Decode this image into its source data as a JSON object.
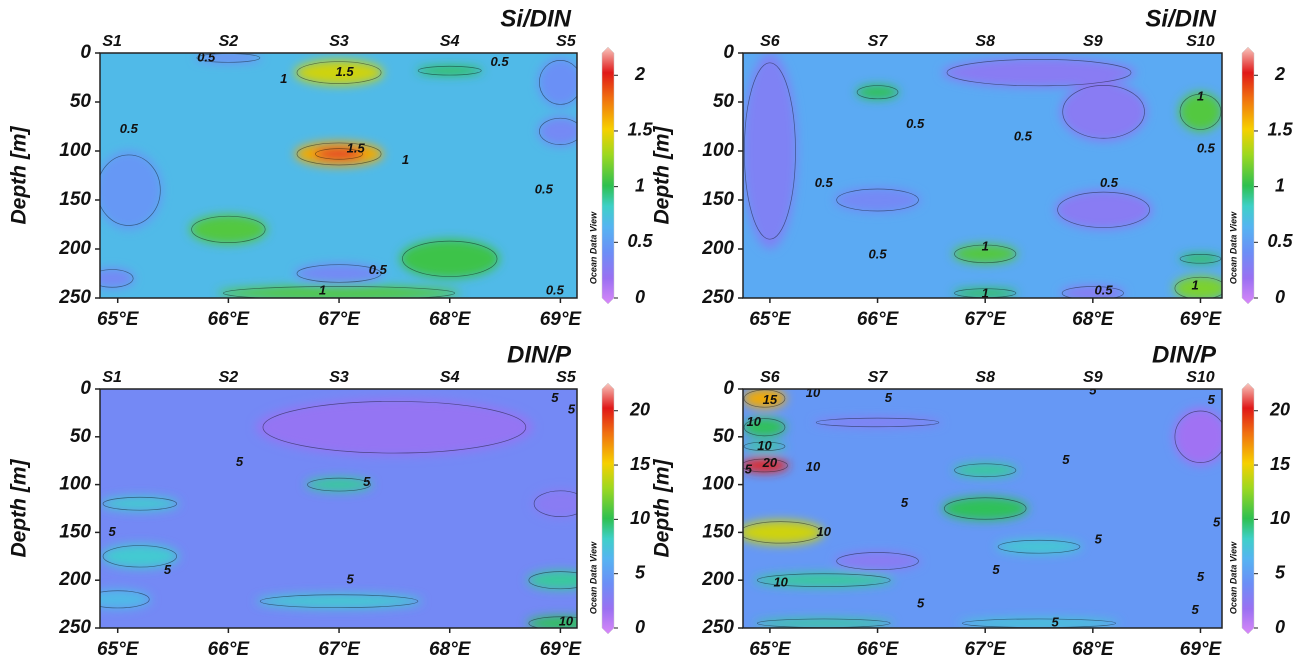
{
  "chart_data": [
    {
      "type": "contour",
      "title": "Si/DIN",
      "y_label": "Depth [m]",
      "colorbar_label": "Ocean Data View",
      "stations": [
        {
          "name": "S1",
          "lon": 64.95
        },
        {
          "name": "S2",
          "lon": 66.0
        },
        {
          "name": "S3",
          "lon": 67.0
        },
        {
          "name": "S4",
          "lon": 68.0
        },
        {
          "name": "S5",
          "lon": 69.05
        }
      ],
      "xlim": [
        64.84,
        69.15
      ],
      "xticks": [
        {
          "value": 65,
          "label": "65°E"
        },
        {
          "value": 66,
          "label": "66°E"
        },
        {
          "value": 67,
          "label": "67°E"
        },
        {
          "value": 68,
          "label": "68°E"
        },
        {
          "value": 69,
          "label": "69°E"
        }
      ],
      "ylim": [
        250,
        0
      ],
      "yticks": [
        0,
        50,
        100,
        150,
        200,
        250
      ],
      "zlim": [
        0,
        2.2
      ],
      "zticks": [
        0,
        0.5,
        1,
        1.5,
        2
      ],
      "background": 0.7,
      "features": [
        {
          "lon": 67.0,
          "depth": 20,
          "lon_width": 0.8,
          "depth_height": 25,
          "value": 1.4
        },
        {
          "lon": 67.0,
          "depth": 103,
          "lon_width": 0.8,
          "depth_height": 25,
          "value": 1.6
        },
        {
          "lon": 67.0,
          "depth": 103,
          "lon_width": 0.45,
          "depth_height": 12,
          "value": 2.0
        },
        {
          "lon": 66.0,
          "depth": 180,
          "lon_width": 0.7,
          "depth_height": 30,
          "value": 1.1
        },
        {
          "lon": 68.0,
          "depth": 210,
          "lon_width": 0.9,
          "depth_height": 40,
          "value": 1.05
        },
        {
          "lon": 67.0,
          "depth": 245,
          "lon_width": 2.2,
          "depth_height": 15,
          "value": 1.1
        },
        {
          "lon": 67.0,
          "depth": 225,
          "lon_width": 0.8,
          "depth_height": 20,
          "value": 0.4
        },
        {
          "lon": 65.1,
          "depth": 140,
          "lon_width": 0.6,
          "depth_height": 80,
          "value": 0.5
        },
        {
          "lon": 69.0,
          "depth": 30,
          "lon_width": 0.4,
          "depth_height": 50,
          "value": 0.45
        },
        {
          "lon": 69.0,
          "depth": 80,
          "lon_width": 0.4,
          "depth_height": 30,
          "value": 0.4
        },
        {
          "lon": 68.0,
          "depth": 18,
          "lon_width": 0.6,
          "depth_height": 10,
          "value": 1.0
        },
        {
          "lon": 66.0,
          "depth": 5,
          "lon_width": 0.6,
          "depth_height": 10,
          "value": 0.4
        },
        {
          "lon": 64.95,
          "depth": 230,
          "lon_width": 0.4,
          "depth_height": 20,
          "value": 0.4
        }
      ],
      "contour_labels": [
        {
          "lon": 65.1,
          "depth": 78,
          "value": 0.5
        },
        {
          "lon": 65.8,
          "depth": 5,
          "value": 0.5
        },
        {
          "lon": 67.05,
          "depth": 20,
          "value": 1.5
        },
        {
          "lon": 66.5,
          "depth": 27,
          "value": 1
        },
        {
          "lon": 68.45,
          "depth": 10,
          "value": 0.5
        },
        {
          "lon": 67.15,
          "depth": 98,
          "value": 1.5
        },
        {
          "lon": 67.6,
          "depth": 110,
          "value": 1
        },
        {
          "lon": 67.35,
          "depth": 222,
          "value": 0.5
        },
        {
          "lon": 66.85,
          "depth": 243,
          "value": 1
        },
        {
          "lon": 68.85,
          "depth": 140,
          "value": 0.5
        },
        {
          "lon": 68.95,
          "depth": 243,
          "value": 0.5
        }
      ]
    },
    {
      "type": "contour",
      "title": "Si/DIN",
      "y_label": "Depth [m]",
      "colorbar_label": "Ocean Data View",
      "stations": [
        {
          "name": "S6",
          "lon": 65.0
        },
        {
          "name": "S7",
          "lon": 66.0
        },
        {
          "name": "S8",
          "lon": 67.0
        },
        {
          "name": "S9",
          "lon": 68.0
        },
        {
          "name": "S10",
          "lon": 69.0
        }
      ],
      "xlim": [
        64.75,
        69.2
      ],
      "xticks": [
        {
          "value": 65,
          "label": "65°E"
        },
        {
          "value": 66,
          "label": "66°E"
        },
        {
          "value": 67,
          "label": "67°E"
        },
        {
          "value": 68,
          "label": "68°E"
        },
        {
          "value": 69,
          "label": "69°E"
        }
      ],
      "ylim": [
        250,
        0
      ],
      "yticks": [
        0,
        50,
        100,
        150,
        200,
        250
      ],
      "zlim": [
        0,
        2.2
      ],
      "zticks": [
        0,
        0.5,
        1,
        1.5,
        2
      ],
      "background": 0.6,
      "features": [
        {
          "lon": 65.0,
          "depth": 100,
          "lon_width": 0.5,
          "depth_height": 200,
          "value": 0.35
        },
        {
          "lon": 67.5,
          "depth": 20,
          "lon_width": 1.8,
          "depth_height": 30,
          "value": 0.3
        },
        {
          "lon": 68.1,
          "depth": 60,
          "lon_width": 0.8,
          "depth_height": 60,
          "value": 0.3
        },
        {
          "lon": 68.1,
          "depth": 160,
          "lon_width": 0.9,
          "depth_height": 40,
          "value": 0.3
        },
        {
          "lon": 66.0,
          "depth": 150,
          "lon_width": 0.8,
          "depth_height": 25,
          "value": 0.4
        },
        {
          "lon": 67.0,
          "depth": 205,
          "lon_width": 0.6,
          "depth_height": 20,
          "value": 1.1
        },
        {
          "lon": 66.0,
          "depth": 40,
          "lon_width": 0.4,
          "depth_height": 15,
          "value": 1.0
        },
        {
          "lon": 69.0,
          "depth": 60,
          "lon_width": 0.4,
          "depth_height": 40,
          "value": 1.1
        },
        {
          "lon": 68.0,
          "depth": 245,
          "lon_width": 0.6,
          "depth_height": 15,
          "value": 0.3
        },
        {
          "lon": 69.0,
          "depth": 240,
          "lon_width": 0.5,
          "depth_height": 25,
          "value": 1.2
        },
        {
          "lon": 69.0,
          "depth": 210,
          "lon_width": 0.4,
          "depth_height": 10,
          "value": 1.0
        },
        {
          "lon": 67.0,
          "depth": 245,
          "lon_width": 0.6,
          "depth_height": 10,
          "value": 1.0
        }
      ],
      "contour_labels": [
        {
          "lon": 69.0,
          "depth": 45,
          "value": 1
        },
        {
          "lon": 66.35,
          "depth": 73,
          "value": 0.5
        },
        {
          "lon": 67.35,
          "depth": 86,
          "value": 0.5
        },
        {
          "lon": 69.05,
          "depth": 98,
          "value": 0.5
        },
        {
          "lon": 65.5,
          "depth": 133,
          "value": 0.5
        },
        {
          "lon": 67.0,
          "depth": 198,
          "value": 1
        },
        {
          "lon": 66.0,
          "depth": 206,
          "value": 0.5
        },
        {
          "lon": 68.15,
          "depth": 133,
          "value": 0.5
        },
        {
          "lon": 67.0,
          "depth": 246,
          "value": 1
        },
        {
          "lon": 68.1,
          "depth": 243,
          "value": 0.5
        },
        {
          "lon": 68.95,
          "depth": 238,
          "value": 1
        }
      ]
    },
    {
      "type": "contour",
      "title": "DIN/P",
      "y_label": "Depth [m]",
      "colorbar_label": "Ocean Data View",
      "stations": [
        {
          "name": "S1",
          "lon": 64.95
        },
        {
          "name": "S2",
          "lon": 66.0
        },
        {
          "name": "S3",
          "lon": 67.0
        },
        {
          "name": "S4",
          "lon": 68.0
        },
        {
          "name": "S5",
          "lon": 69.05
        }
      ],
      "xlim": [
        64.84,
        69.15
      ],
      "xticks": [
        {
          "value": 65,
          "label": "65°E"
        },
        {
          "value": 66,
          "label": "66°E"
        },
        {
          "value": 67,
          "label": "67°E"
        },
        {
          "value": 68,
          "label": "68°E"
        },
        {
          "value": 69,
          "label": "69°E"
        }
      ],
      "ylim": [
        250,
        0
      ],
      "yticks": [
        0,
        50,
        100,
        150,
        200,
        250
      ],
      "zlim": [
        0,
        22
      ],
      "zticks": [
        0,
        5,
        10,
        15,
        20
      ],
      "background": 4,
      "features": [
        {
          "lon": 67.5,
          "depth": 40,
          "lon_width": 2.5,
          "depth_height": 60,
          "value": 2.5
        },
        {
          "lon": 67.0,
          "depth": 100,
          "lon_width": 0.6,
          "depth_height": 15,
          "value": 9
        },
        {
          "lon": 65.2,
          "depth": 120,
          "lon_width": 0.7,
          "depth_height": 15,
          "value": 8
        },
        {
          "lon": 65.2,
          "depth": 175,
          "lon_width": 0.7,
          "depth_height": 25,
          "value": 8
        },
        {
          "lon": 65.0,
          "depth": 220,
          "lon_width": 0.6,
          "depth_height": 20,
          "value": 7
        },
        {
          "lon": 67.0,
          "depth": 222,
          "lon_width": 1.5,
          "depth_height": 15,
          "value": 8
        },
        {
          "lon": 69.0,
          "depth": 200,
          "lon_width": 0.6,
          "depth_height": 20,
          "value": 9
        },
        {
          "lon": 69.0,
          "depth": 245,
          "lon_width": 0.6,
          "depth_height": 15,
          "value": 10
        },
        {
          "lon": 69.0,
          "depth": 120,
          "lon_width": 0.5,
          "depth_height": 30,
          "value": 3
        }
      ],
      "contour_labels": [
        {
          "lon": 66.1,
          "depth": 77,
          "value": 5
        },
        {
          "lon": 67.25,
          "depth": 98,
          "value": 5
        },
        {
          "lon": 64.95,
          "depth": 150,
          "value": 5
        },
        {
          "lon": 65.45,
          "depth": 190,
          "value": 5
        },
        {
          "lon": 67.1,
          "depth": 200,
          "value": 5
        },
        {
          "lon": 68.95,
          "depth": 10,
          "value": 5
        },
        {
          "lon": 69.1,
          "depth": 22,
          "value": 5
        },
        {
          "lon": 69.05,
          "depth": 244,
          "value": 10
        }
      ]
    },
    {
      "type": "contour",
      "title": "DIN/P",
      "y_label": "Depth [m]",
      "colorbar_label": "Ocean Data View",
      "stations": [
        {
          "name": "S6",
          "lon": 65.0
        },
        {
          "name": "S7",
          "lon": 66.0
        },
        {
          "name": "S8",
          "lon": 67.0
        },
        {
          "name": "S9",
          "lon": 68.0
        },
        {
          "name": "S10",
          "lon": 69.0
        }
      ],
      "xlim": [
        64.75,
        69.2
      ],
      "xticks": [
        {
          "value": 65,
          "label": "65°E"
        },
        {
          "value": 66,
          "label": "66°E"
        },
        {
          "value": 67,
          "label": "67°E"
        },
        {
          "value": 68,
          "label": "68°E"
        },
        {
          "value": 69,
          "label": "69°E"
        }
      ],
      "ylim": [
        250,
        0
      ],
      "yticks": [
        0,
        50,
        100,
        150,
        200,
        250
      ],
      "zlim": [
        0,
        22
      ],
      "zticks": [
        0,
        5,
        10,
        15,
        20
      ],
      "background": 5,
      "features": [
        {
          "lon": 64.95,
          "depth": 10,
          "lon_width": 0.4,
          "depth_height": 20,
          "value": 16
        },
        {
          "lon": 64.95,
          "depth": 40,
          "lon_width": 0.4,
          "depth_height": 20,
          "value": 10
        },
        {
          "lon": 64.95,
          "depth": 80,
          "lon_width": 0.45,
          "depth_height": 15,
          "value": 20
        },
        {
          "lon": 64.95,
          "depth": 60,
          "lon_width": 0.4,
          "depth_height": 10,
          "value": 9
        },
        {
          "lon": 65.1,
          "depth": 150,
          "lon_width": 0.8,
          "depth_height": 25,
          "value": 14
        },
        {
          "lon": 65.5,
          "depth": 200,
          "lon_width": 1.3,
          "depth_height": 15,
          "value": 9
        },
        {
          "lon": 65.5,
          "depth": 245,
          "lon_width": 1.3,
          "depth_height": 10,
          "value": 9
        },
        {
          "lon": 66.0,
          "depth": 180,
          "lon_width": 0.8,
          "depth_height": 20,
          "value": 3
        },
        {
          "lon": 67.0,
          "depth": 85,
          "lon_width": 0.6,
          "depth_height": 15,
          "value": 9
        },
        {
          "lon": 67.0,
          "depth": 125,
          "lon_width": 0.8,
          "depth_height": 25,
          "value": 10
        },
        {
          "lon": 67.5,
          "depth": 165,
          "lon_width": 0.8,
          "depth_height": 15,
          "value": 8
        },
        {
          "lon": 69.0,
          "depth": 50,
          "lon_width": 0.5,
          "depth_height": 60,
          "value": 2
        },
        {
          "lon": 66.0,
          "depth": 35,
          "lon_width": 1.2,
          "depth_height": 10,
          "value": 3
        },
        {
          "lon": 67.5,
          "depth": 245,
          "lon_width": 1.5,
          "depth_height": 10,
          "value": 8
        }
      ],
      "contour_labels": [
        {
          "lon": 65.0,
          "depth": 12,
          "value": 15
        },
        {
          "lon": 64.85,
          "depth": 35,
          "value": 10
        },
        {
          "lon": 64.95,
          "depth": 60,
          "value": 10
        },
        {
          "lon": 65.0,
          "depth": 78,
          "value": 20
        },
        {
          "lon": 64.8,
          "depth": 85,
          "value": 5
        },
        {
          "lon": 65.4,
          "depth": 5,
          "value": 10
        },
        {
          "lon": 65.4,
          "depth": 82,
          "value": 10
        },
        {
          "lon": 66.1,
          "depth": 10,
          "value": 5
        },
        {
          "lon": 68.0,
          "depth": 2,
          "value": 5
        },
        {
          "lon": 69.1,
          "depth": 12,
          "value": 5
        },
        {
          "lon": 67.75,
          "depth": 75,
          "value": 5
        },
        {
          "lon": 66.25,
          "depth": 120,
          "value": 5
        },
        {
          "lon": 65.5,
          "depth": 150,
          "value": 10
        },
        {
          "lon": 68.05,
          "depth": 158,
          "value": 5
        },
        {
          "lon": 69.15,
          "depth": 140,
          "value": 5
        },
        {
          "lon": 67.1,
          "depth": 190,
          "value": 5
        },
        {
          "lon": 65.1,
          "depth": 203,
          "value": 10
        },
        {
          "lon": 69.0,
          "depth": 197,
          "value": 5
        },
        {
          "lon": 66.4,
          "depth": 225,
          "value": 5
        },
        {
          "lon": 67.65,
          "depth": 245,
          "value": 5
        },
        {
          "lon": 68.95,
          "depth": 232,
          "value": 5
        }
      ]
    }
  ]
}
